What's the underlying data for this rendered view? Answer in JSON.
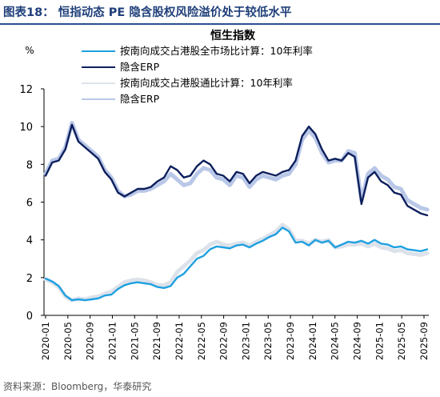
{
  "figure_title": "图表18：  恒指动态 PE 隐含股权风险溢价处于较低水平",
  "source_note": "资料来源：Bloomberg，华泰研究",
  "chart_data": {
    "type": "line",
    "title": "恒生指数",
    "ylabel": "%",
    "ylim": [
      0,
      12
    ],
    "yticks": [
      0,
      2,
      4,
      6,
      8,
      10,
      12
    ],
    "xticks": [
      "2020-01",
      "2020-05",
      "2020-09",
      "2021-01",
      "2021-05",
      "2021-09",
      "2022-01",
      "2022-05",
      "2022-09",
      "2023-01",
      "2023-05",
      "2023-09",
      "2024-01",
      "2024-05",
      "2024-09",
      "2025-01",
      "2025-05",
      "2025-09"
    ],
    "grid": false,
    "legend_position": "top",
    "series": [
      {
        "name": "按南向成交占港股全市场比计算：10年利率",
        "color": "#1fa0e0",
        "values": [
          1.95,
          1.8,
          1.55,
          1.05,
          0.8,
          0.85,
          0.8,
          0.85,
          0.9,
          1.05,
          1.1,
          1.4,
          1.6,
          1.7,
          1.75,
          1.7,
          1.65,
          1.5,
          1.45,
          1.55,
          2.0,
          2.2,
          2.6,
          3.0,
          3.15,
          3.5,
          3.65,
          3.6,
          3.55,
          3.7,
          3.75,
          3.6,
          3.8,
          3.95,
          4.15,
          4.3,
          4.65,
          4.45,
          3.85,
          3.9,
          3.7,
          4.0,
          3.85,
          3.95,
          3.6,
          3.75,
          3.9,
          3.85,
          3.95,
          3.8,
          4.0,
          3.8,
          3.75,
          3.6,
          3.65,
          3.5,
          3.45,
          3.4,
          3.5
        ]
      },
      {
        "name": "隐含ERP",
        "color": "#0d1f5c",
        "values": [
          7.4,
          8.1,
          8.2,
          8.8,
          10.1,
          9.2,
          8.9,
          8.6,
          8.3,
          7.6,
          7.2,
          6.5,
          6.3,
          6.5,
          6.7,
          6.7,
          6.8,
          7.1,
          7.3,
          7.9,
          7.7,
          7.3,
          7.4,
          7.9,
          8.2,
          8.0,
          7.5,
          7.4,
          7.1,
          7.6,
          7.5,
          7.0,
          7.4,
          7.6,
          7.5,
          7.4,
          7.6,
          7.7,
          8.2,
          9.5,
          10.0,
          9.6,
          8.8,
          8.2,
          8.3,
          8.2,
          8.6,
          8.4,
          5.9,
          7.3,
          7.6,
          7.1,
          6.9,
          6.5,
          6.4,
          5.8,
          5.6,
          5.4,
          5.3
        ]
      },
      {
        "name": "按南向成交占港股通比计算：10年利率",
        "color": "#dde2ea",
        "values": [
          1.9,
          1.75,
          1.5,
          1.0,
          0.8,
          0.9,
          0.85,
          0.95,
          1.0,
          1.15,
          1.25,
          1.5,
          1.75,
          1.85,
          1.9,
          1.85,
          1.75,
          1.6,
          1.6,
          1.75,
          2.3,
          2.6,
          2.9,
          3.3,
          3.45,
          3.75,
          3.9,
          3.75,
          3.7,
          3.8,
          3.85,
          3.7,
          3.9,
          4.05,
          4.25,
          4.45,
          4.8,
          4.55,
          3.95,
          3.95,
          3.8,
          4.0,
          3.9,
          4.0,
          3.6,
          3.65,
          3.75,
          3.75,
          3.8,
          3.65,
          3.8,
          3.6,
          3.55,
          3.4,
          3.45,
          3.3,
          3.25,
          3.2,
          3.3
        ]
      },
      {
        "name": "隐含ERP",
        "color": "#b9c7e8",
        "values": [
          7.5,
          8.2,
          8.3,
          8.9,
          10.2,
          9.3,
          9.0,
          8.7,
          8.4,
          7.7,
          7.3,
          6.6,
          6.3,
          6.4,
          6.6,
          6.6,
          6.7,
          6.9,
          7.1,
          7.5,
          7.2,
          6.9,
          7.0,
          7.5,
          7.8,
          7.7,
          7.3,
          7.2,
          6.9,
          7.4,
          7.3,
          6.8,
          7.2,
          7.4,
          7.3,
          7.2,
          7.4,
          7.5,
          8.0,
          9.3,
          9.8,
          9.4,
          8.6,
          8.1,
          8.2,
          8.2,
          8.7,
          8.6,
          6.1,
          7.5,
          7.8,
          7.4,
          7.2,
          6.8,
          6.7,
          6.1,
          5.9,
          5.7,
          5.6
        ]
      }
    ]
  }
}
